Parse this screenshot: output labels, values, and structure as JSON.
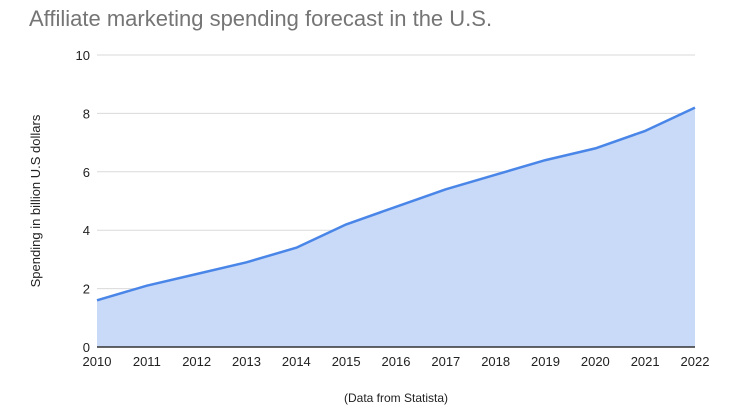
{
  "chart_data": {
    "type": "area",
    "title": "Affiliate marketing spending forecast in the U.S.",
    "xlabel": "(Data from Statista)",
    "ylabel": "Spending in billion U.S dollars",
    "x": [
      "2010",
      "2011",
      "2012",
      "2013",
      "2014",
      "2015",
      "2016",
      "2017",
      "2018",
      "2019",
      "2020",
      "2021",
      "2022"
    ],
    "series": [
      {
        "name": "Spending",
        "values": [
          1.6,
          2.1,
          2.5,
          2.9,
          3.4,
          4.2,
          4.8,
          5.4,
          5.9,
          6.4,
          6.8,
          7.4,
          8.2
        ]
      }
    ],
    "yticks": [
      "0",
      "2",
      "4",
      "6",
      "8",
      "10"
    ],
    "ylim": [
      0,
      10
    ],
    "grid": true,
    "legend": "none",
    "colors": {
      "line": "#4a86e8",
      "fill": "#c9daf8",
      "grid": "#dadada",
      "axis": "#333333"
    }
  }
}
